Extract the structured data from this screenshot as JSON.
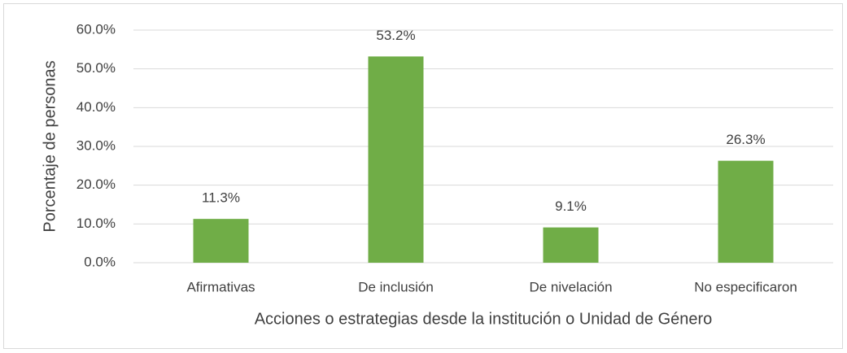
{
  "chart_data": {
    "type": "bar",
    "x_label": "Acciones o estrategias desde la institución o Unidad de Género",
    "y_label": "Porcentaje de personas",
    "categories": [
      "Afirmativas",
      "De inclusión",
      "De nivelación",
      "No especificaron"
    ],
    "values": [
      11.3,
      53.2,
      9.1,
      26.3
    ],
    "value_labels": [
      "11.3%",
      "53.2%",
      "9.1%",
      "26.3%"
    ],
    "color": "#70ad47",
    "ylim": [
      0,
      60
    ],
    "yticks": [
      {
        "value": 0,
        "label": "0.0%"
      },
      {
        "value": 10,
        "label": "10.0%"
      },
      {
        "value": 20,
        "label": "20.0%"
      },
      {
        "value": 30,
        "label": "30.0%"
      },
      {
        "value": 40,
        "label": "40.0%"
      },
      {
        "value": 50,
        "label": "50.0%"
      },
      {
        "value": 60,
        "label": "60.0%"
      }
    ],
    "grid": true
  }
}
